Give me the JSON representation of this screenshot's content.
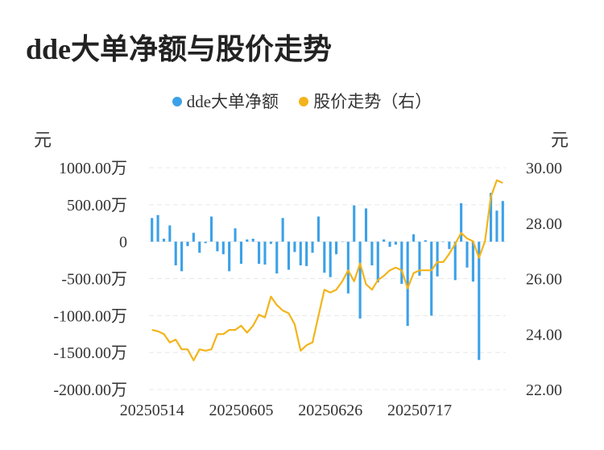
{
  "title": "dde大单净额与股价走势",
  "colors": {
    "bar": "#3ba1e8",
    "line": "#f3b41b",
    "grid": "#e8e8e8",
    "axis_text": "#333333"
  },
  "chart_data": {
    "type": "bar+line",
    "legend": [
      {
        "label": "dde大单净额",
        "color": "#3ba1e8",
        "marker": "dot"
      },
      {
        "label": "股价走势（右）",
        "color": "#f3b41b",
        "marker": "dot"
      }
    ],
    "legend_position": "top-center",
    "left_axis": {
      "unit": "元",
      "ticks": [
        "1000.00万",
        "500.00万",
        "0",
        "-500.00万",
        "-1000.00万",
        "-1500.00万",
        "-2000.00万"
      ],
      "range": [
        -2000,
        1000
      ]
    },
    "right_axis": {
      "unit": "元",
      "ticks": [
        "30.00",
        "28.00",
        "26.00",
        "24.00",
        "22.00"
      ],
      "range": [
        22,
        30
      ]
    },
    "x_tick_labels": [
      "20250514",
      "20250605",
      "20250626",
      "20250717"
    ],
    "x_tick_indices": [
      0,
      15,
      30,
      45
    ],
    "grid": true,
    "series": [
      {
        "name": "dde大单净额",
        "type": "bar",
        "axis": "left",
        "values": [
          320,
          360,
          40,
          220,
          -320,
          -400,
          -60,
          120,
          -150,
          -20,
          340,
          -130,
          -170,
          -400,
          180,
          -300,
          30,
          40,
          -300,
          -310,
          -30,
          -430,
          320,
          -380,
          -140,
          -320,
          -330,
          -150,
          340,
          -420,
          -480,
          -170,
          0,
          -700,
          490,
          -1040,
          450,
          -320,
          -550,
          30,
          -70,
          -40,
          -570,
          -1140,
          100,
          -460,
          20,
          -1000,
          -470,
          0,
          -100,
          -520,
          520,
          -350,
          -540,
          -1600,
          0,
          660,
          420,
          550
        ]
      },
      {
        "name": "股价走势（右）",
        "type": "line",
        "axis": "right",
        "values": [
          24.15,
          24.1,
          24.0,
          23.7,
          23.8,
          23.45,
          23.45,
          23.05,
          23.45,
          23.4,
          23.45,
          24.0,
          24.0,
          24.15,
          24.15,
          24.3,
          24.05,
          24.3,
          24.7,
          24.6,
          25.35,
          25.05,
          24.85,
          24.75,
          24.35,
          23.4,
          23.6,
          23.7,
          24.65,
          25.6,
          25.5,
          25.6,
          25.9,
          26.3,
          25.9,
          26.55,
          25.8,
          25.6,
          25.95,
          26.1,
          26.3,
          26.4,
          26.3,
          25.65,
          26.2,
          26.3,
          26.3,
          26.3,
          26.6,
          26.6,
          26.9,
          27.25,
          27.65,
          27.45,
          27.35,
          26.75,
          27.35,
          28.95,
          29.55,
          29.45
        ]
      }
    ]
  }
}
